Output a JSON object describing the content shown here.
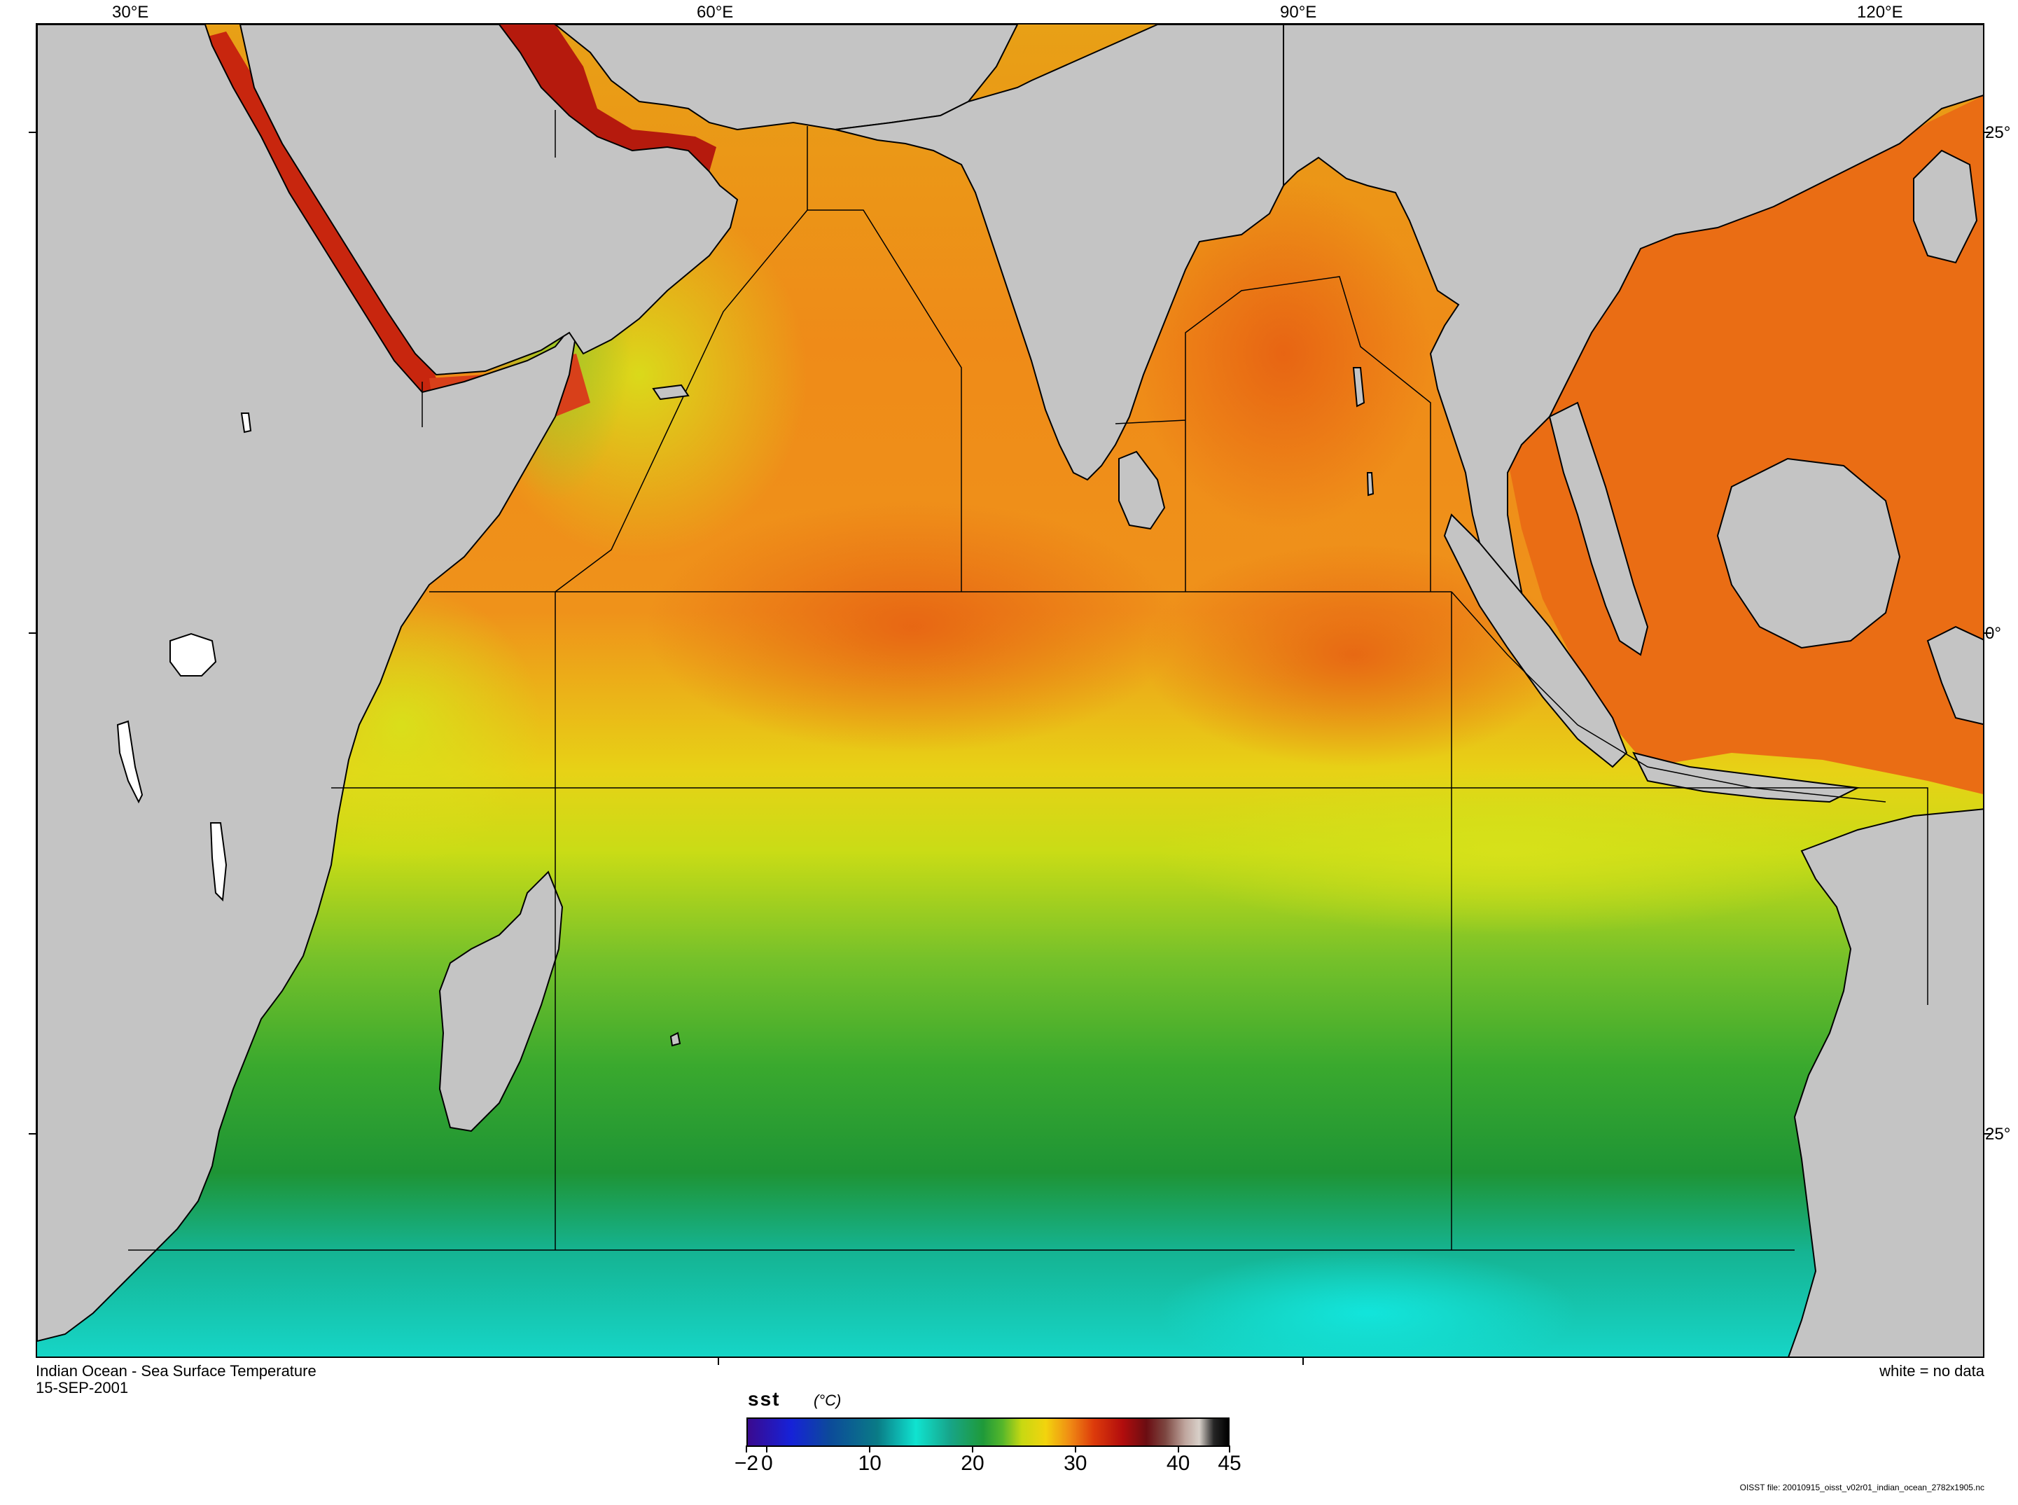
{
  "map": {
    "title": "Indian Ocean - Sea Surface Temperature",
    "date": "15-SEP-2001",
    "no_data_note": "white = no data",
    "longitude_labels": [
      "30°E",
      "60°E",
      "90°E",
      "120°E"
    ],
    "latitude_labels": [
      "25°",
      "0°",
      "25°"
    ],
    "colors": {
      "land": "#c4c4c4",
      "no_data": "#ffffff",
      "hot": "#c4200f",
      "warm": "#f08a14",
      "mild": "#e7dc14",
      "cool": "#2a9a30",
      "cold": "#17c9c4"
    }
  },
  "legend": {
    "variable": "sst",
    "unit": "(°C)",
    "tick_labels": [
      "−2",
      "0",
      "10",
      "20",
      "30",
      "40",
      "45"
    ],
    "range": [
      -2,
      45
    ]
  },
  "file_note": "OISST file: 20010915_oisst_v02r01_indian_ocean_2782x1905.nc"
}
